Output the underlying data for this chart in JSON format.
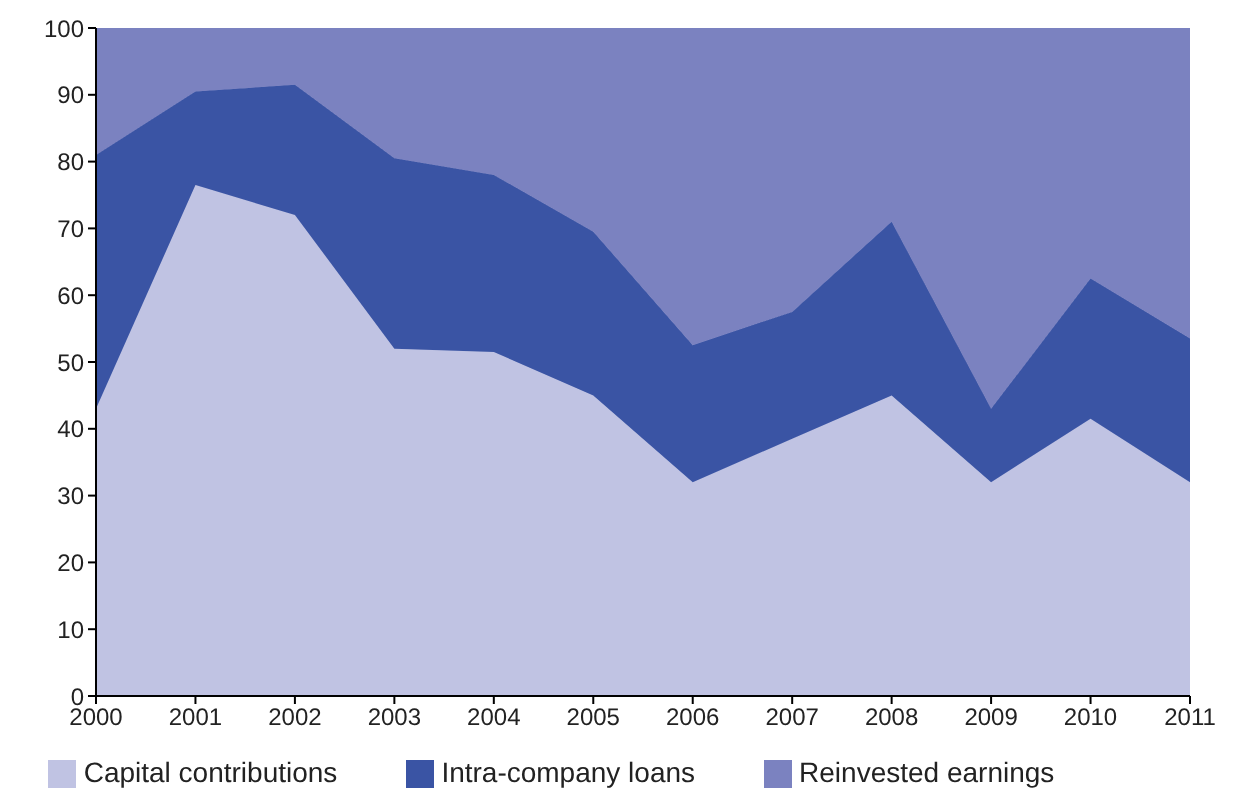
{
  "chart_data": {
    "type": "area",
    "stacked": true,
    "x": [
      2000,
      2001,
      2002,
      2003,
      2004,
      2005,
      2006,
      2007,
      2008,
      2009,
      2010,
      2011
    ],
    "series": [
      {
        "name": "Capital contributions",
        "color": "#c0c3e3",
        "values": [
          43,
          76.5,
          72,
          52,
          51.5,
          45,
          32,
          38.5,
          45,
          32,
          41.5,
          32
        ]
      },
      {
        "name": "Intra-company loans",
        "color": "#3a54a4",
        "values": [
          38,
          14,
          19.5,
          28.5,
          26.5,
          24.5,
          20.5,
          19,
          26,
          11,
          21,
          21.5
        ]
      },
      {
        "name": "Reinvested earnings",
        "color": "#7b82c0",
        "values": [
          19,
          9.5,
          8.5,
          19.5,
          22,
          30.5,
          47.5,
          42.5,
          29,
          57,
          37.5,
          46.5
        ]
      }
    ],
    "xlim": [
      2000,
      2011
    ],
    "xticks": [
      2000,
      2001,
      2002,
      2003,
      2004,
      2005,
      2006,
      2007,
      2008,
      2009,
      2010,
      2011
    ],
    "ylim": [
      0,
      100
    ],
    "yticks": [
      0,
      10,
      20,
      30,
      40,
      50,
      60,
      70,
      80,
      90,
      100
    ],
    "grid": false,
    "legend": "bottom"
  }
}
